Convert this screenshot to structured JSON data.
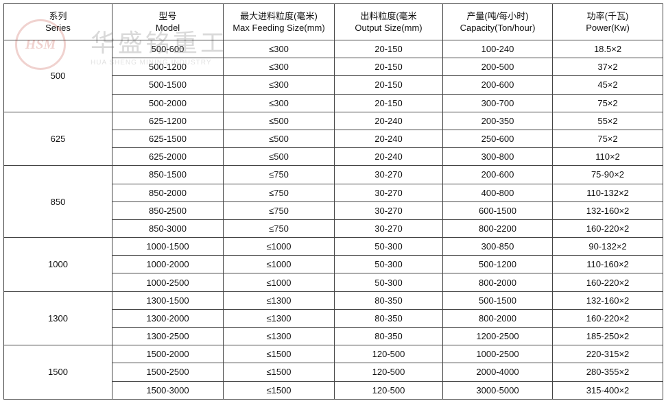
{
  "watermark": {
    "logo": "HSM",
    "name": "华盛铭重工",
    "subtitle": "HUA SHENG MINING INDUSTRY"
  },
  "table": {
    "header": [
      {
        "zh": "系列",
        "en": "Series"
      },
      {
        "zh": "型号",
        "en": "Model"
      },
      {
        "zh": "最大进料粒度(毫米)",
        "en": "Max Feeding Size(mm)"
      },
      {
        "zh": "出料粒度(毫米",
        "en": "Output Size(mm)"
      },
      {
        "zh": "产量(吨/每小时)",
        "en": "Capacity(Ton/hour)"
      },
      {
        "zh": "功率(千瓦)",
        "en": "Power(Kw)"
      }
    ],
    "groups": [
      {
        "series": "500",
        "rows": [
          [
            "500-600",
            "≤300",
            "20-150",
            "100-240",
            "18.5×2"
          ],
          [
            "500-1200",
            "≤300",
            "20-150",
            "200-500",
            "37×2"
          ],
          [
            "500-1500",
            "≤300",
            "20-150",
            "200-600",
            "45×2"
          ],
          [
            "500-2000",
            "≤300",
            "20-150",
            "300-700",
            "75×2"
          ]
        ]
      },
      {
        "series": "625",
        "rows": [
          [
            "625-1200",
            "≤500",
            "20-240",
            "200-350",
            "55×2"
          ],
          [
            "625-1500",
            "≤500",
            "20-240",
            "250-600",
            "75×2"
          ],
          [
            "625-2000",
            "≤500",
            "20-240",
            "300-800",
            "110×2"
          ]
        ]
      },
      {
        "series": "850",
        "rows": [
          [
            "850-1500",
            "≤750",
            "30-270",
            "200-600",
            "75-90×2"
          ],
          [
            "850-2000",
            "≤750",
            "30-270",
            "400-800",
            "110-132×2"
          ],
          [
            "850-2500",
            "≤750",
            "30-270",
            "600-1500",
            "132-160×2"
          ],
          [
            "850-3000",
            "≤750",
            "30-270",
            "800-2200",
            "160-220×2"
          ]
        ]
      },
      {
        "series": "1000",
        "rows": [
          [
            "1000-1500",
            "≤1000",
            "50-300",
            "300-850",
            "90-132×2"
          ],
          [
            "1000-2000",
            "≤1000",
            "50-300",
            "500-1200",
            "110-160×2"
          ],
          [
            "1000-2500",
            "≤1000",
            "50-300",
            "800-2000",
            "160-220×2"
          ]
        ]
      },
      {
        "series": "1300",
        "rows": [
          [
            "1300-1500",
            "≤1300",
            "80-350",
            "500-1500",
            "132-160×2"
          ],
          [
            "1300-2000",
            "≤1300",
            "80-350",
            "800-2000",
            "160-220×2"
          ],
          [
            "1300-2500",
            "≤1300",
            "80-350",
            "1200-2500",
            "185-250×2"
          ]
        ]
      },
      {
        "series": "1500",
        "rows": [
          [
            "1500-2000",
            "≤1500",
            "120-500",
            "1000-2500",
            "220-315×2"
          ],
          [
            "1500-2500",
            "≤1500",
            "120-500",
            "2000-4000",
            "280-355×2"
          ],
          [
            "1500-3000",
            "≤1500",
            "120-500",
            "3000-5000",
            "315-400×2"
          ]
        ]
      }
    ]
  }
}
